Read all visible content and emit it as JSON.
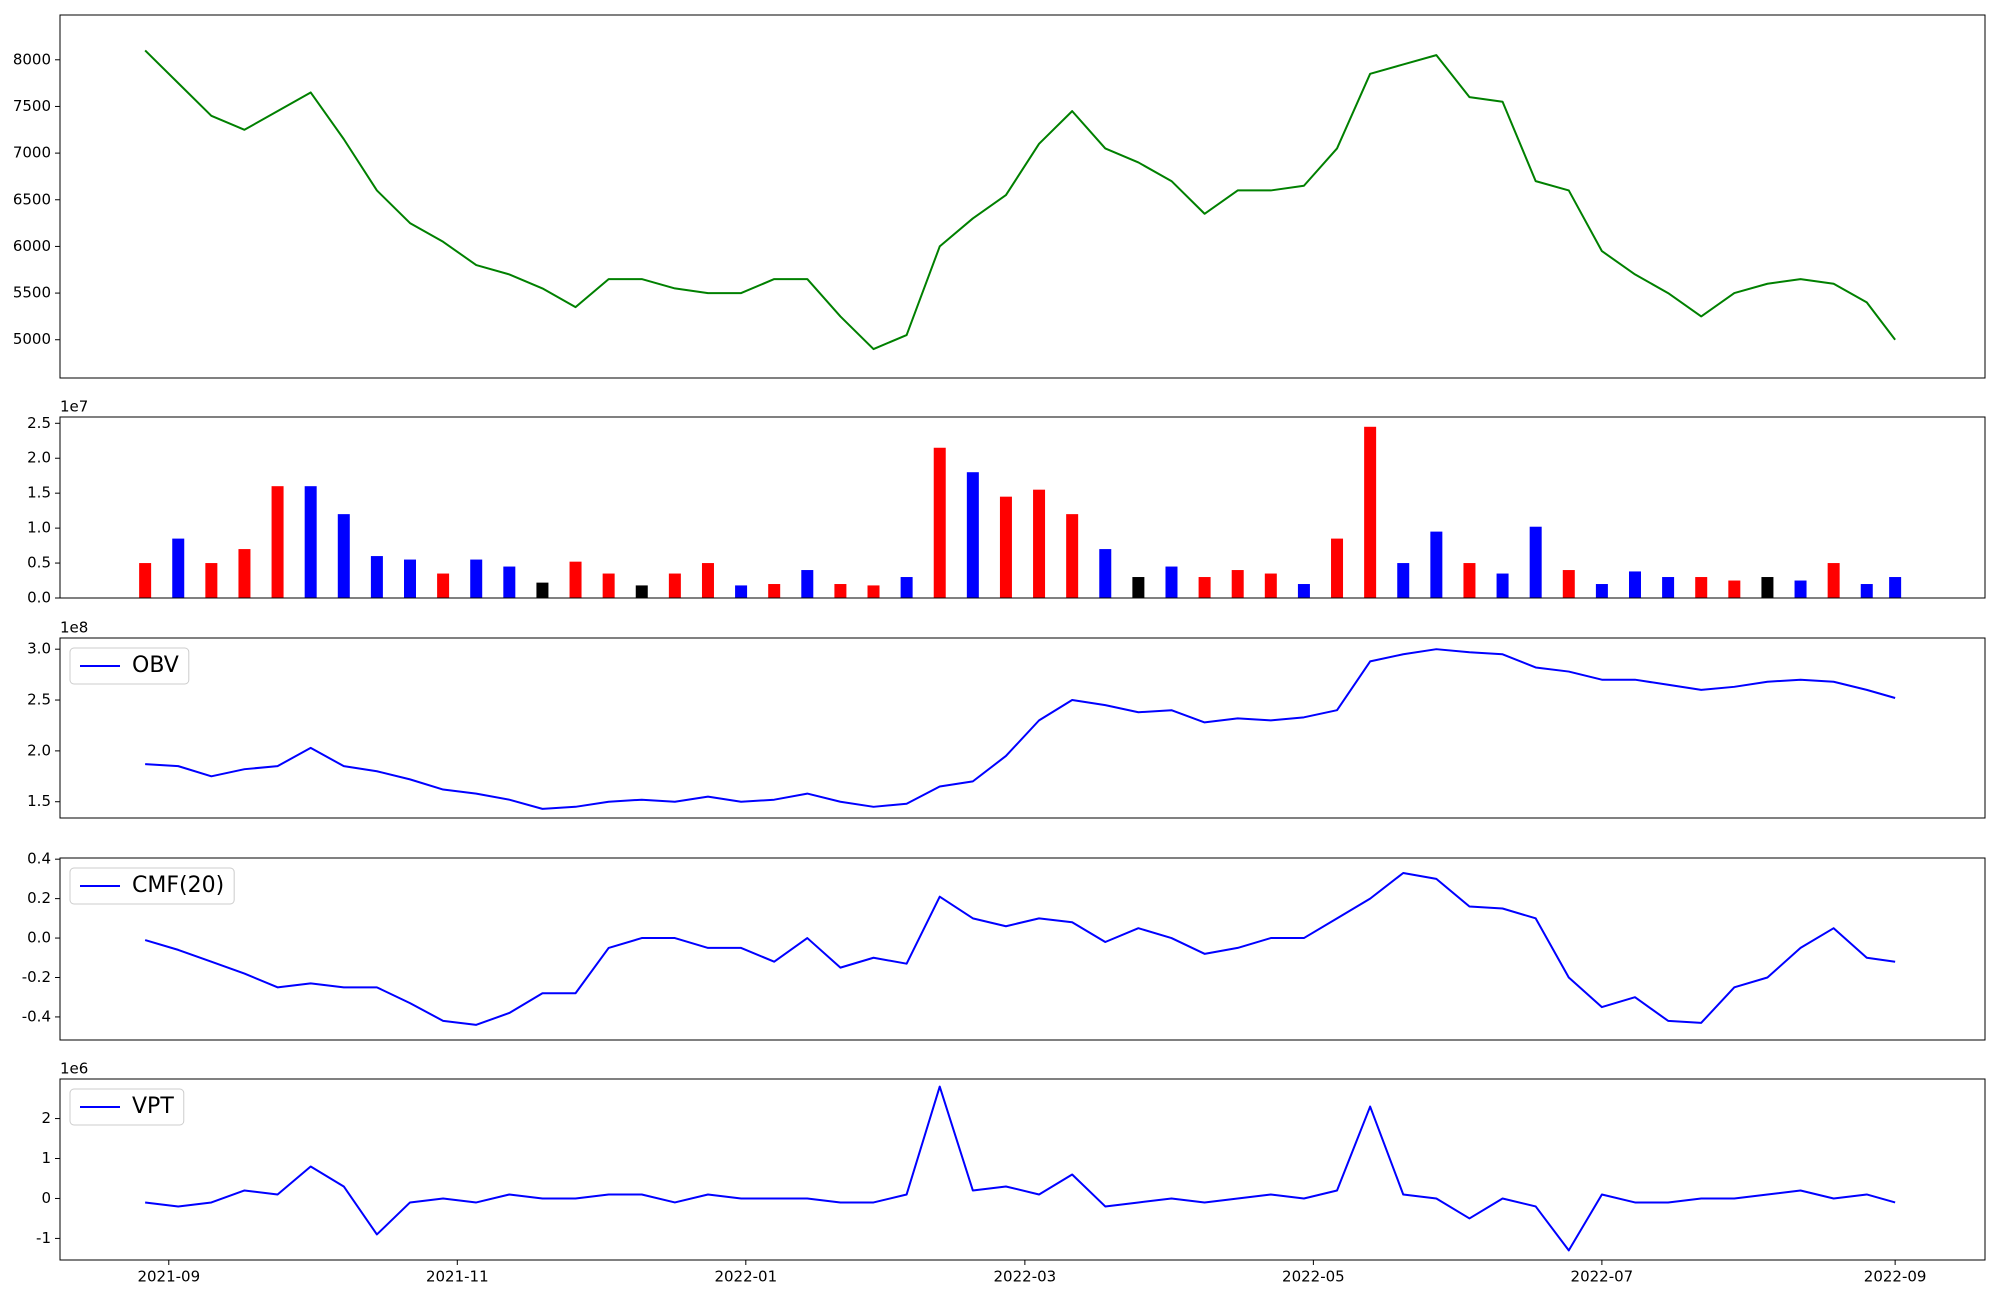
{
  "chart_data": [
    {
      "type": "line",
      "series": [
        {
          "color": "#008000",
          "values": [
            8100,
            7750,
            7400,
            7250,
            7450,
            7650,
            7150,
            6600,
            6250,
            6050,
            5800,
            5700,
            5550,
            5350,
            5650,
            5650,
            5550,
            5500,
            5500,
            5650,
            5650,
            5250,
            4900,
            5050,
            6000,
            6300,
            6550,
            7100,
            7450,
            7050,
            6900,
            6700,
            6350,
            6600,
            6600,
            6650,
            7050,
            7850,
            7950,
            8050,
            7600,
            7550,
            6700,
            6600,
            5950,
            5700,
            5500,
            5250,
            5500,
            5600,
            5650,
            5600,
            5400,
            5000
          ]
        }
      ],
      "x": [
        "2021-08-27",
        "2021-09-03",
        "2021-09-10",
        "2021-09-17",
        "2021-09-24",
        "2021-10-01",
        "2021-10-08",
        "2021-10-15",
        "2021-10-22",
        "2021-10-29",
        "2021-11-05",
        "2021-11-12",
        "2021-11-19",
        "2021-11-26",
        "2021-12-03",
        "2021-12-10",
        "2021-12-17",
        "2021-12-24",
        "2021-12-31",
        "2022-01-07",
        "2022-01-14",
        "2022-01-21",
        "2022-01-28",
        "2022-02-04",
        "2022-02-11",
        "2022-02-18",
        "2022-02-25",
        "2022-03-04",
        "2022-03-11",
        "2022-03-18",
        "2022-03-25",
        "2022-04-01",
        "2022-04-08",
        "2022-04-15",
        "2022-04-22",
        "2022-04-29",
        "2022-05-06",
        "2022-05-13",
        "2022-05-20",
        "2022-05-27",
        "2022-06-03",
        "2022-06-10",
        "2022-06-17",
        "2022-06-24",
        "2022-07-01",
        "2022-07-08",
        "2022-07-15",
        "2022-07-22",
        "2022-07-29",
        "2022-08-05",
        "2022-08-12",
        "2022-08-19",
        "2022-08-26",
        "2022-09-01"
      ],
      "xlim": [
        "2021-08-09",
        "2022-09-20"
      ],
      "ylim": [
        4590,
        8480
      ],
      "yticks": [
        5000,
        5500,
        6000,
        6500,
        7000,
        7500,
        8000
      ]
    },
    {
      "type": "bar",
      "offset_label": "1e7",
      "series": [
        {
          "values": [
            0.5,
            0.85,
            0.5,
            0.7,
            1.6,
            1.6,
            1.2,
            0.6,
            0.55,
            0.35,
            0.55,
            0.45,
            0.22,
            0.52,
            0.35,
            0.18,
            0.35,
            0.5,
            0.18,
            0.2,
            0.4,
            0.2,
            0.18,
            0.3,
            2.15,
            1.8,
            1.45,
            1.55,
            1.2,
            0.7,
            0.3,
            0.45,
            0.3,
            0.4,
            0.35,
            0.2,
            0.85,
            2.45,
            0.5,
            0.95,
            0.5,
            0.35,
            1.02,
            0.4,
            0.2,
            0.38,
            0.3,
            0.3,
            0.25,
            0.3,
            0.25,
            0.5,
            0.2,
            0.3
          ],
          "colors": [
            "#ff0000",
            "#0000ff",
            "#ff0000",
            "#ff0000",
            "#ff0000",
            "#0000ff",
            "#0000ff",
            "#0000ff",
            "#0000ff",
            "#ff0000",
            "#0000ff",
            "#0000ff",
            "#000000",
            "#ff0000",
            "#ff0000",
            "#000000",
            "#ff0000",
            "#ff0000",
            "#0000ff",
            "#ff0000",
            "#0000ff",
            "#ff0000",
            "#ff0000",
            "#0000ff",
            "#ff0000",
            "#0000ff",
            "#ff0000",
            "#ff0000",
            "#ff0000",
            "#0000ff",
            "#000000",
            "#0000ff",
            "#ff0000",
            "#ff0000",
            "#ff0000",
            "#0000ff",
            "#ff0000",
            "#ff0000",
            "#0000ff",
            "#0000ff",
            "#ff0000",
            "#0000ff",
            "#0000ff",
            "#ff0000",
            "#0000ff",
            "#0000ff",
            "#0000ff",
            "#ff0000",
            "#ff0000",
            "#000000",
            "#0000ff",
            "#ff0000",
            "#0000ff",
            "#0000ff"
          ]
        }
      ],
      "x": [
        "2021-08-27",
        "2021-09-03",
        "2021-09-10",
        "2021-09-17",
        "2021-09-24",
        "2021-10-01",
        "2021-10-08",
        "2021-10-15",
        "2021-10-22",
        "2021-10-29",
        "2021-11-05",
        "2021-11-12",
        "2021-11-19",
        "2021-11-26",
        "2021-12-03",
        "2021-12-10",
        "2021-12-17",
        "2021-12-24",
        "2021-12-31",
        "2022-01-07",
        "2022-01-14",
        "2022-01-21",
        "2022-01-28",
        "2022-02-04",
        "2022-02-11",
        "2022-02-18",
        "2022-02-25",
        "2022-03-04",
        "2022-03-11",
        "2022-03-18",
        "2022-03-25",
        "2022-04-01",
        "2022-04-08",
        "2022-04-15",
        "2022-04-22",
        "2022-04-29",
        "2022-05-06",
        "2022-05-13",
        "2022-05-20",
        "2022-05-27",
        "2022-06-03",
        "2022-06-10",
        "2022-06-17",
        "2022-06-24",
        "2022-07-01",
        "2022-07-08",
        "2022-07-15",
        "2022-07-22",
        "2022-07-29",
        "2022-08-05",
        "2022-08-12",
        "2022-08-19",
        "2022-08-26",
        "2022-09-01"
      ],
      "xlim": [
        "2021-08-09",
        "2022-09-20"
      ],
      "ylim": [
        0,
        2.59
      ],
      "yticks": [
        {
          "value": 0,
          "label": "0.0"
        },
        0.5,
        {
          "value": 1,
          "label": "1.0"
        },
        1.5,
        {
          "value": 2,
          "label": "2.0"
        },
        2.5
      ]
    },
    {
      "type": "line",
      "offset_label": "1e8",
      "legend": "upper left",
      "series": [
        {
          "name": "OBV",
          "color": "#0000ff",
          "values": [
            1.87,
            1.85,
            1.75,
            1.82,
            1.85,
            2.03,
            1.85,
            1.8,
            1.72,
            1.62,
            1.58,
            1.52,
            1.43,
            1.45,
            1.5,
            1.52,
            1.5,
            1.55,
            1.5,
            1.52,
            1.58,
            1.5,
            1.45,
            1.48,
            1.65,
            1.7,
            1.95,
            2.3,
            2.5,
            2.45,
            2.38,
            2.4,
            2.28,
            2.32,
            2.3,
            2.33,
            2.4,
            2.88,
            2.95,
            3.0,
            2.97,
            2.95,
            2.82,
            2.78,
            2.7,
            2.7,
            2.65,
            2.6,
            2.63,
            2.68,
            2.7,
            2.68,
            2.6,
            2.52
          ]
        }
      ],
      "x": [
        "2021-08-27",
        "2021-09-03",
        "2021-09-10",
        "2021-09-17",
        "2021-09-24",
        "2021-10-01",
        "2021-10-08",
        "2021-10-15",
        "2021-10-22",
        "2021-10-29",
        "2021-11-05",
        "2021-11-12",
        "2021-11-19",
        "2021-11-26",
        "2021-12-03",
        "2021-12-10",
        "2021-12-17",
        "2021-12-24",
        "2021-12-31",
        "2022-01-07",
        "2022-01-14",
        "2022-01-21",
        "2022-01-28",
        "2022-02-04",
        "2022-02-11",
        "2022-02-18",
        "2022-02-25",
        "2022-03-04",
        "2022-03-11",
        "2022-03-18",
        "2022-03-25",
        "2022-04-01",
        "2022-04-08",
        "2022-04-15",
        "2022-04-22",
        "2022-04-29",
        "2022-05-06",
        "2022-05-13",
        "2022-05-20",
        "2022-05-27",
        "2022-06-03",
        "2022-06-10",
        "2022-06-17",
        "2022-06-24",
        "2022-07-01",
        "2022-07-08",
        "2022-07-15",
        "2022-07-22",
        "2022-07-29",
        "2022-08-05",
        "2022-08-12",
        "2022-08-19",
        "2022-08-26",
        "2022-09-01"
      ],
      "xlim": [
        "2021-08-09",
        "2022-09-20"
      ],
      "ylim": [
        1.34,
        3.11
      ],
      "yticks": [
        1.5,
        {
          "value": 2,
          "label": "2.0"
        },
        2.5,
        {
          "value": 3,
          "label": "3.0"
        }
      ]
    },
    {
      "type": "line",
      "legend": "upper left",
      "series": [
        {
          "name": "CMF(20)",
          "color": "#0000ff",
          "values": [
            -0.01,
            -0.06,
            -0.12,
            -0.18,
            -0.25,
            -0.23,
            -0.25,
            -0.25,
            -0.33,
            -0.42,
            -0.44,
            -0.38,
            -0.28,
            -0.28,
            -0.05,
            0,
            0,
            -0.05,
            -0.05,
            -0.12,
            0,
            -0.15,
            -0.1,
            -0.13,
            0.21,
            0.1,
            0.06,
            0.1,
            0.08,
            -0.02,
            0.05,
            0,
            -0.08,
            -0.05,
            0,
            0,
            0.1,
            0.2,
            0.33,
            0.3,
            0.16,
            0.15,
            0.1,
            -0.2,
            -0.35,
            -0.3,
            -0.42,
            -0.43,
            -0.25,
            -0.2,
            -0.05,
            0.05,
            -0.1,
            -0.12
          ]
        }
      ],
      "x": [
        "2021-08-27",
        "2021-09-03",
        "2021-09-10",
        "2021-09-17",
        "2021-09-24",
        "2021-10-01",
        "2021-10-08",
        "2021-10-15",
        "2021-10-22",
        "2021-10-29",
        "2021-11-05",
        "2021-11-12",
        "2021-11-19",
        "2021-11-26",
        "2021-12-03",
        "2021-12-10",
        "2021-12-17",
        "2021-12-24",
        "2021-12-31",
        "2022-01-07",
        "2022-01-14",
        "2022-01-21",
        "2022-01-28",
        "2022-02-04",
        "2022-02-11",
        "2022-02-18",
        "2022-02-25",
        "2022-03-04",
        "2022-03-11",
        "2022-03-18",
        "2022-03-25",
        "2022-04-01",
        "2022-04-08",
        "2022-04-15",
        "2022-04-22",
        "2022-04-29",
        "2022-05-06",
        "2022-05-13",
        "2022-05-20",
        "2022-05-27",
        "2022-06-03",
        "2022-06-10",
        "2022-06-17",
        "2022-06-24",
        "2022-07-01",
        "2022-07-08",
        "2022-07-15",
        "2022-07-22",
        "2022-07-29",
        "2022-08-05",
        "2022-08-12",
        "2022-08-19",
        "2022-08-26",
        "2022-09-01"
      ],
      "xlim": [
        "2021-08-09",
        "2022-09-20"
      ],
      "ylim": [
        -0.517,
        0.406
      ],
      "yticks": [
        -0.4,
        -0.2,
        {
          "value": 0,
          "label": "0.0"
        },
        0.2,
        0.4
      ]
    },
    {
      "type": "line",
      "offset_label": "1e6",
      "legend": "upper left",
      "series": [
        {
          "name": "VPT",
          "color": "#0000ff",
          "values": [
            -0.1,
            -0.2,
            -0.1,
            0.2,
            0.1,
            0.8,
            0.3,
            -0.9,
            -0.1,
            0,
            -0.1,
            0.1,
            0,
            0,
            0.1,
            0.1,
            -0.1,
            0.1,
            0,
            0,
            0,
            -0.1,
            -0.1,
            0.1,
            2.8,
            0.2,
            0.3,
            0.1,
            0.6,
            -0.2,
            -0.1,
            0,
            -0.1,
            0,
            0.1,
            0,
            0.2,
            2.3,
            0.1,
            0,
            -0.5,
            0,
            -0.2,
            -1.3,
            0.1,
            -0.1,
            -0.1,
            0,
            0,
            0.1,
            0.2,
            0,
            0.1,
            -0.1
          ]
        }
      ],
      "x": [
        "2021-08-27",
        "2021-09-03",
        "2021-09-10",
        "2021-09-17",
        "2021-09-24",
        "2021-10-01",
        "2021-10-08",
        "2021-10-15",
        "2021-10-22",
        "2021-10-29",
        "2021-11-05",
        "2021-11-12",
        "2021-11-19",
        "2021-11-26",
        "2021-12-03",
        "2021-12-10",
        "2021-12-17",
        "2021-12-24",
        "2021-12-31",
        "2022-01-07",
        "2022-01-14",
        "2022-01-21",
        "2022-01-28",
        "2022-02-04",
        "2022-02-11",
        "2022-02-18",
        "2022-02-25",
        "2022-03-04",
        "2022-03-11",
        "2022-03-18",
        "2022-03-25",
        "2022-04-01",
        "2022-04-08",
        "2022-04-15",
        "2022-04-22",
        "2022-04-29",
        "2022-05-06",
        "2022-05-13",
        "2022-05-20",
        "2022-05-27",
        "2022-06-03",
        "2022-06-10",
        "2022-06-17",
        "2022-06-24",
        "2022-07-01",
        "2022-07-08",
        "2022-07-15",
        "2022-07-22",
        "2022-07-29",
        "2022-08-05",
        "2022-08-12",
        "2022-08-19",
        "2022-08-26",
        "2022-09-01"
      ],
      "xlim": [
        "2021-08-09",
        "2022-09-20"
      ],
      "ylim": [
        -1.54,
        2.99
      ],
      "yticks": [
        -1,
        0,
        1,
        2
      ],
      "xticks": [
        {
          "value": "2021-09-01",
          "label": "2021-09"
        },
        {
          "value": "2021-11-01",
          "label": "2021-11"
        },
        {
          "value": "2022-01-01",
          "label": "2022-01"
        },
        {
          "value": "2022-03-01",
          "label": "2022-03"
        },
        {
          "value": "2022-05-01",
          "label": "2022-05"
        },
        {
          "value": "2022-07-01",
          "label": "2022-07"
        },
        {
          "value": "2022-09-01",
          "label": "2022-09"
        }
      ]
    }
  ]
}
